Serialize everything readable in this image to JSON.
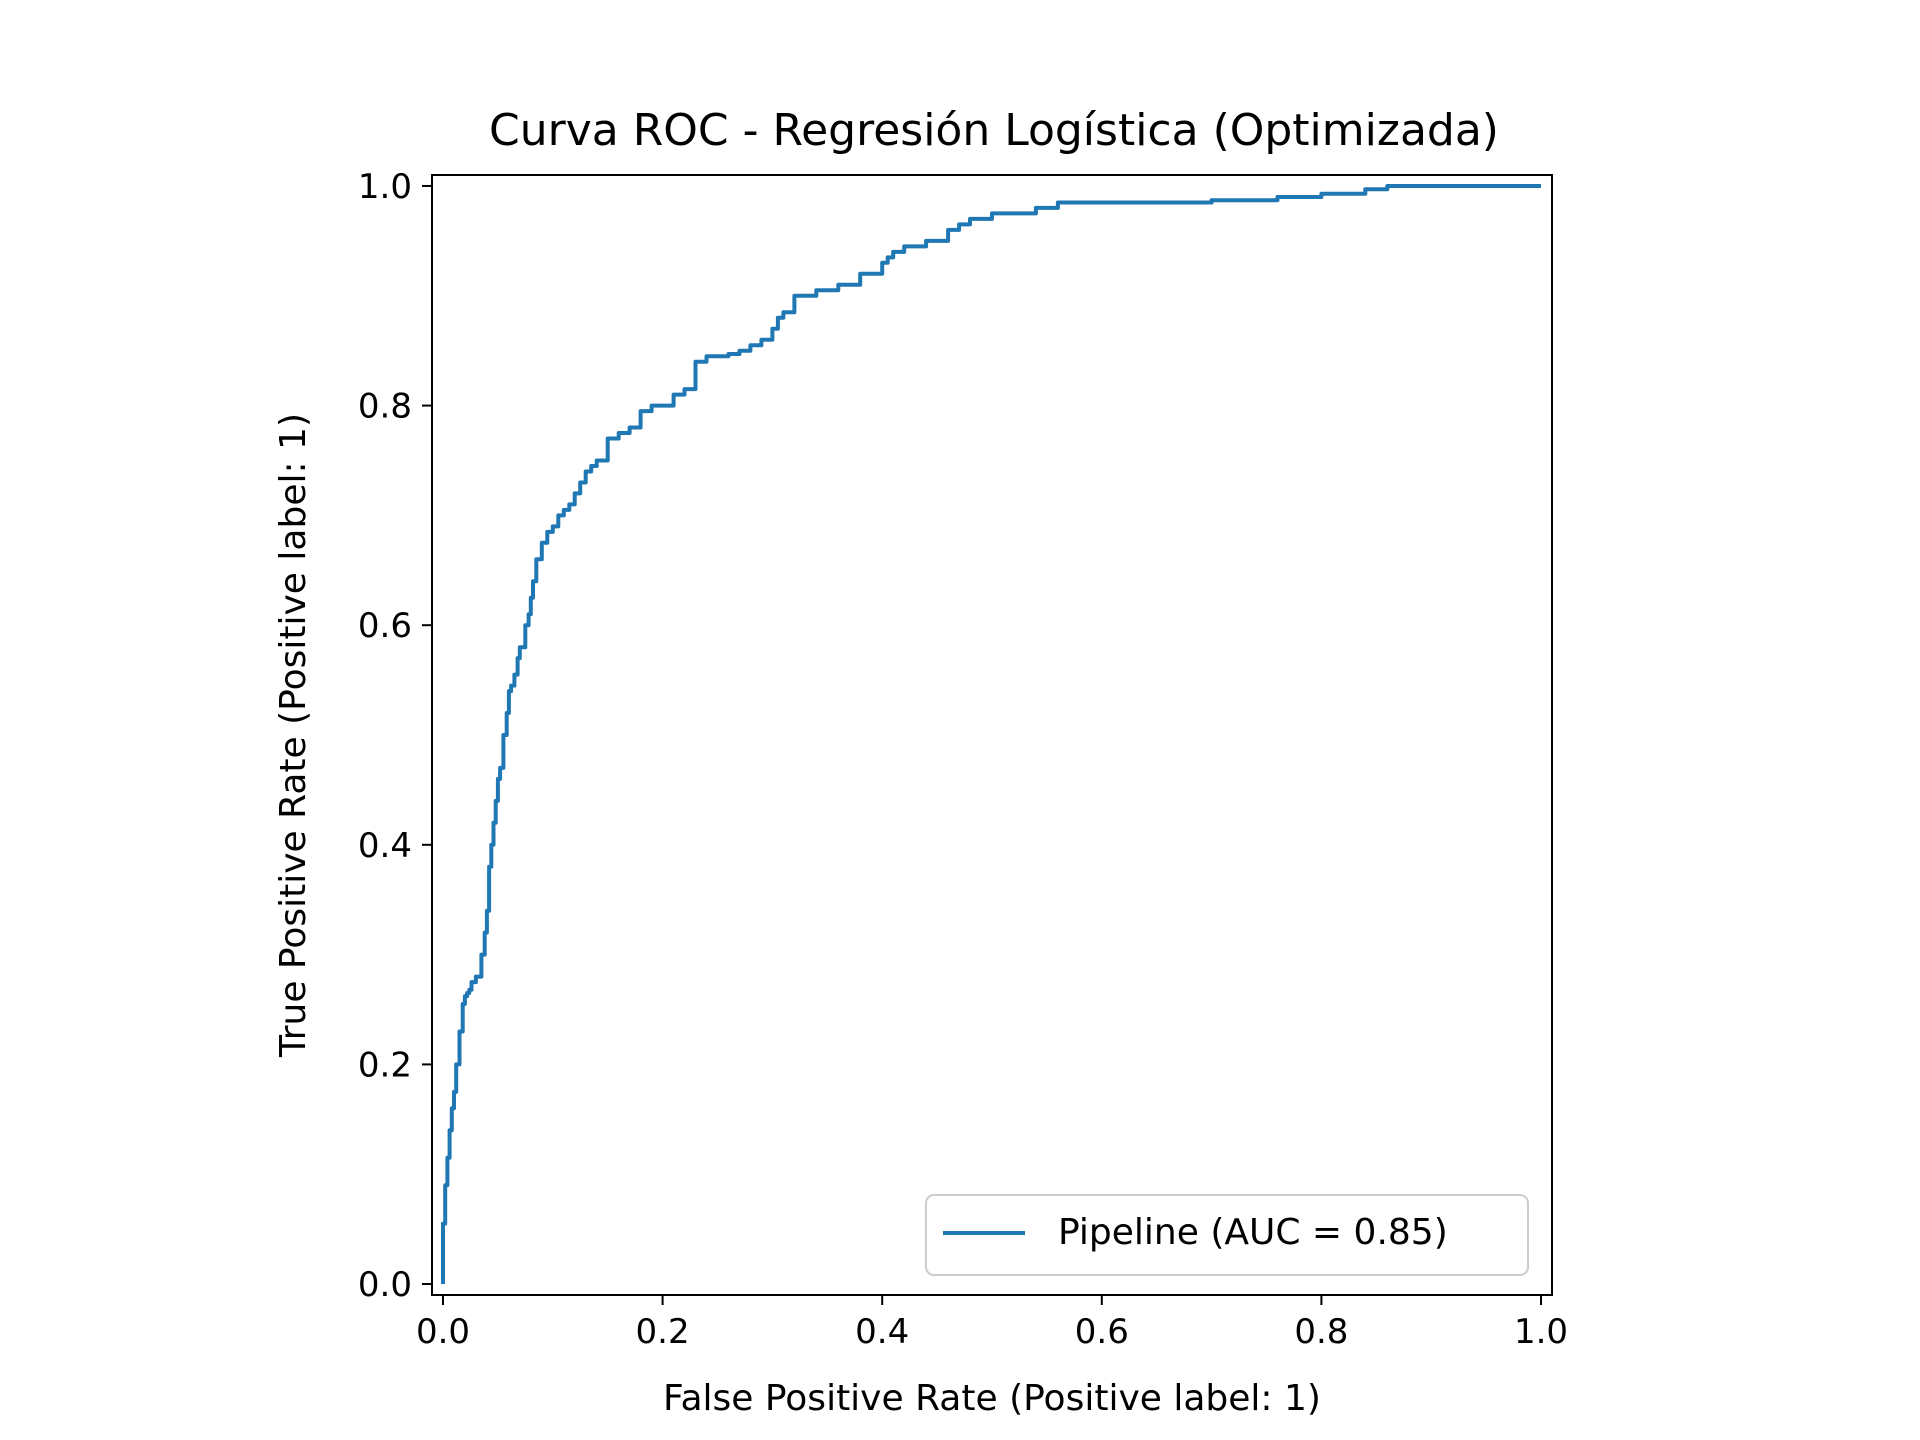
{
  "chart_data": {
    "type": "line",
    "title": "Curva ROC - Regresión Logística (Optimizada)",
    "xlabel": "False Positive Rate (Positive label: 1)",
    "ylabel": "True Positive Rate (Positive label: 1)",
    "xlim": [
      -0.01,
      1.01
    ],
    "ylim": [
      -0.01,
      1.01
    ],
    "x_ticks": [
      "0.0",
      "0.2",
      "0.4",
      "0.6",
      "0.8",
      "1.0"
    ],
    "y_ticks": [
      "0.0",
      "0.2",
      "0.4",
      "0.6",
      "0.8",
      "1.0"
    ],
    "grid": false,
    "legend_position": "lower right",
    "series": [
      {
        "name": "Pipeline (AUC = 0.85)",
        "color": "#1f77b4",
        "x": [
          0.0,
          0.0,
          0.002,
          0.004,
          0.006,
          0.008,
          0.01,
          0.012,
          0.015,
          0.018,
          0.02,
          0.022,
          0.024,
          0.026,
          0.03,
          0.035,
          0.038,
          0.04,
          0.042,
          0.044,
          0.046,
          0.048,
          0.05,
          0.052,
          0.055,
          0.058,
          0.06,
          0.062,
          0.065,
          0.068,
          0.07,
          0.075,
          0.078,
          0.08,
          0.082,
          0.085,
          0.09,
          0.095,
          0.1,
          0.105,
          0.11,
          0.115,
          0.12,
          0.125,
          0.13,
          0.135,
          0.14,
          0.15,
          0.16,
          0.17,
          0.18,
          0.19,
          0.2,
          0.21,
          0.22,
          0.23,
          0.24,
          0.25,
          0.26,
          0.27,
          0.28,
          0.29,
          0.3,
          0.305,
          0.31,
          0.32,
          0.34,
          0.36,
          0.38,
          0.4,
          0.405,
          0.41,
          0.42,
          0.43,
          0.44,
          0.46,
          0.47,
          0.48,
          0.5,
          0.52,
          0.54,
          0.56,
          0.58,
          0.6,
          0.62,
          0.64,
          0.66,
          0.7,
          0.76,
          0.8,
          0.84,
          0.86,
          0.9,
          1.0
        ],
        "y": [
          0.0,
          0.055,
          0.09,
          0.115,
          0.14,
          0.16,
          0.175,
          0.2,
          0.23,
          0.255,
          0.262,
          0.265,
          0.268,
          0.275,
          0.28,
          0.3,
          0.32,
          0.34,
          0.38,
          0.4,
          0.42,
          0.44,
          0.46,
          0.47,
          0.5,
          0.52,
          0.54,
          0.545,
          0.555,
          0.57,
          0.58,
          0.6,
          0.61,
          0.625,
          0.64,
          0.66,
          0.675,
          0.685,
          0.69,
          0.7,
          0.705,
          0.71,
          0.72,
          0.73,
          0.74,
          0.745,
          0.75,
          0.77,
          0.775,
          0.78,
          0.795,
          0.8,
          0.8,
          0.81,
          0.815,
          0.84,
          0.845,
          0.845,
          0.847,
          0.85,
          0.855,
          0.86,
          0.87,
          0.88,
          0.885,
          0.9,
          0.905,
          0.91,
          0.92,
          0.93,
          0.935,
          0.94,
          0.945,
          0.945,
          0.95,
          0.96,
          0.965,
          0.97,
          0.975,
          0.975,
          0.98,
          0.985,
          0.985,
          0.985,
          0.985,
          0.985,
          0.985,
          0.987,
          0.99,
          0.993,
          0.997,
          1.0,
          1.0,
          1.0
        ]
      }
    ]
  }
}
